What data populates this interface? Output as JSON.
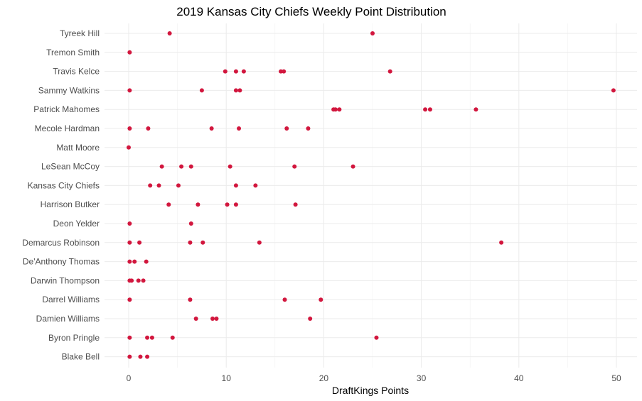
{
  "chart_data": {
    "type": "scatter",
    "title": "2019 Kansas City Chiefs Weekly Point Distribution",
    "xlabel": "DraftKings Points",
    "ylabel": "",
    "xlim": [
      -1.5,
      52
    ],
    "x_ticks": [
      0,
      10,
      20,
      30,
      40,
      50
    ],
    "grid": true,
    "point_color": "#d2173e",
    "categories": [
      "Tyreek Hill",
      "Tremon Smith",
      "Travis Kelce",
      "Sammy Watkins",
      "Patrick Mahomes",
      "Mecole Hardman",
      "Matt Moore",
      "LeSean McCoy",
      "Kansas City Chiefs",
      "Harrison Butker",
      "Deon Yelder",
      "Demarcus Robinson",
      "De'Anthony Thomas",
      "Darwin Thompson",
      "Darrel Williams",
      "Damien Williams",
      "Byron Pringle",
      "Blake Bell"
    ],
    "values": [
      [
        4.2,
        25.0
      ],
      [
        0.1
      ],
      [
        9.9,
        11.0,
        11.8,
        15.6,
        15.9,
        26.8
      ],
      [
        0.1,
        7.5,
        11.0,
        11.4,
        49.7
      ],
      [
        21.0,
        21.2,
        21.6,
        30.4,
        30.9,
        35.6
      ],
      [
        0.1,
        2.0,
        8.5,
        11.3,
        16.2,
        18.4
      ],
      [
        0.0
      ],
      [
        3.4,
        5.4,
        6.4,
        10.4,
        17.0,
        23.0
      ],
      [
        2.2,
        3.1,
        5.1,
        11.0,
        13.0
      ],
      [
        4.1,
        7.1,
        10.1,
        11.0,
        17.1
      ],
      [
        0.1,
        6.4
      ],
      [
        0.1,
        1.1,
        6.3,
        7.6,
        13.4,
        38.2
      ],
      [
        0.1,
        0.6,
        1.8
      ],
      [
        0.1,
        0.3,
        1.0,
        1.5
      ],
      [
        0.1,
        6.3,
        16.0,
        19.7
      ],
      [
        6.9,
        8.6,
        9.0,
        18.6
      ],
      [
        0.1,
        1.9,
        2.4,
        4.5,
        25.4
      ],
      [
        0.1,
        1.2,
        1.9
      ]
    ]
  }
}
